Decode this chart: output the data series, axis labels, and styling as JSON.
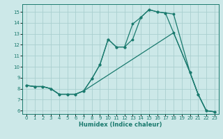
{
  "xlabel": "Humidex (Indice chaleur)",
  "xlim": [
    -0.5,
    23.5
  ],
  "ylim": [
    5.7,
    15.7
  ],
  "xticks": [
    0,
    1,
    2,
    3,
    4,
    5,
    6,
    7,
    8,
    9,
    10,
    11,
    12,
    13,
    14,
    15,
    16,
    17,
    18,
    19,
    20,
    21,
    22,
    23
  ],
  "yticks": [
    6,
    7,
    8,
    9,
    10,
    11,
    12,
    13,
    14,
    15
  ],
  "background_color": "#cce8e8",
  "grid_color": "#aacfcf",
  "line_color": "#1a7a6e",
  "line1_x": [
    0,
    1,
    2,
    3,
    4,
    5,
    6,
    7,
    8,
    9,
    10,
    11,
    12,
    13,
    14,
    15,
    16,
    17,
    18,
    20,
    21,
    22,
    23
  ],
  "line1_y": [
    8.3,
    8.2,
    8.2,
    8.0,
    7.5,
    7.5,
    7.5,
    7.8,
    8.9,
    10.2,
    12.5,
    11.8,
    11.8,
    13.9,
    14.5,
    15.2,
    15.0,
    14.9,
    14.8,
    9.5,
    7.5,
    6.0,
    5.9
  ],
  "line2_x": [
    0,
    1,
    2,
    3,
    4,
    5,
    6,
    7,
    18,
    20,
    21,
    22,
    23
  ],
  "line2_y": [
    8.3,
    8.2,
    8.2,
    8.0,
    7.5,
    7.5,
    7.5,
    7.8,
    13.1,
    9.5,
    7.5,
    6.0,
    5.9
  ],
  "line3_x": [
    0,
    1,
    2,
    3,
    4,
    5,
    6,
    7,
    8,
    9,
    10,
    11,
    12,
    13,
    14,
    15,
    16,
    17,
    18,
    20,
    21,
    22,
    23
  ],
  "line3_y": [
    8.3,
    8.2,
    8.2,
    8.0,
    7.5,
    7.5,
    7.5,
    7.8,
    8.9,
    10.2,
    12.5,
    11.8,
    11.8,
    12.5,
    14.5,
    15.2,
    15.0,
    14.9,
    13.1,
    9.5,
    7.5,
    6.0,
    5.9
  ]
}
